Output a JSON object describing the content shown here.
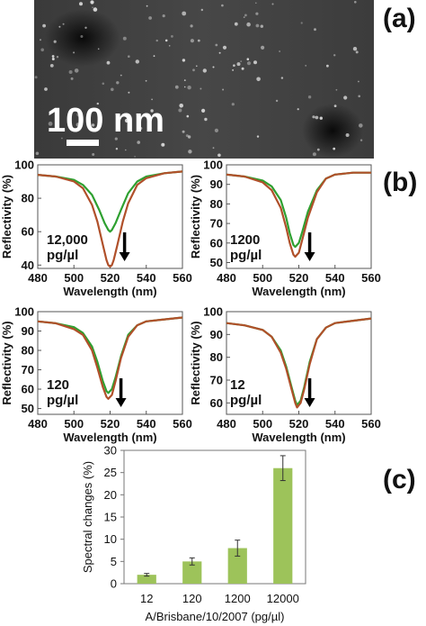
{
  "panel_labels": {
    "a": "(a)",
    "b": "(b)",
    "c": "(c)"
  },
  "micrograph": {
    "scale_bar_text": "100 nm"
  },
  "chart_data": [
    {
      "type": "line",
      "panel": "b-1",
      "xlabel": "Wavelength (nm)",
      "ylabel": "Reflectivity (%)",
      "annotation": "12,000\npg/µl",
      "xlim": [
        480,
        560
      ],
      "ylim": [
        38,
        100
      ],
      "xticks": [
        480,
        500,
        520,
        540,
        560
      ],
      "yticks": [
        40,
        60,
        80,
        100
      ],
      "series": [
        {
          "color": "#2ea030",
          "x": [
            480,
            490,
            500,
            505,
            510,
            514,
            517,
            519,
            520,
            521,
            523,
            526,
            530,
            535,
            540,
            550,
            560
          ],
          "y": [
            94,
            93,
            91,
            88,
            82,
            73,
            65,
            61,
            60,
            61,
            65,
            73,
            83,
            90,
            93,
            95,
            96
          ]
        },
        {
          "color": "#b0502a",
          "x": [
            480,
            490,
            500,
            505,
            510,
            513,
            516,
            518,
            519,
            520,
            521,
            522,
            524,
            527,
            530,
            535,
            540,
            550,
            560
          ],
          "y": [
            94,
            93,
            90,
            86,
            76,
            66,
            52,
            43,
            40,
            39,
            40,
            43,
            52,
            66,
            77,
            88,
            92,
            95,
            96
          ]
        }
      ],
      "arrow_x": 528
    },
    {
      "type": "line",
      "panel": "b-2",
      "xlabel": "Wavelength (nm)",
      "ylabel": "Reflectivity (%)",
      "annotation": "1200\npg/µl",
      "xlim": [
        480,
        560
      ],
      "ylim": [
        47,
        100
      ],
      "xticks": [
        480,
        500,
        520,
        540,
        560
      ],
      "yticks": [
        50,
        60,
        70,
        80,
        90,
        100
      ],
      "series": [
        {
          "color": "#2ea030",
          "x": [
            480,
            490,
            500,
            505,
            510,
            513,
            515,
            517,
            518,
            520,
            522,
            525,
            530,
            535,
            540,
            550,
            560
          ],
          "y": [
            95,
            94,
            92,
            89,
            82,
            73,
            65,
            59,
            58,
            60,
            66,
            76,
            87,
            93,
            95,
            96,
            96
          ]
        },
        {
          "color": "#b0502a",
          "x": [
            480,
            490,
            500,
            505,
            510,
            513,
            515,
            517,
            518,
            520,
            522,
            525,
            530,
            535,
            540,
            550,
            560
          ],
          "y": [
            95,
            94,
            91,
            87,
            78,
            68,
            60,
            54,
            53,
            55,
            62,
            73,
            86,
            93,
            95,
            96,
            96
          ]
        }
      ],
      "arrow_x": 526
    },
    {
      "type": "line",
      "panel": "b-3",
      "xlabel": "Wavelength (nm)",
      "ylabel": "Reflectivity (%)",
      "annotation": "120\npg/µl",
      "xlim": [
        480,
        560
      ],
      "ylim": [
        47,
        100
      ],
      "xticks": [
        480,
        500,
        520,
        540,
        560
      ],
      "yticks": [
        50,
        60,
        70,
        80,
        90,
        100
      ],
      "series": [
        {
          "color": "#2ea030",
          "x": [
            480,
            490,
            500,
            505,
            510,
            513,
            516,
            518,
            519,
            521,
            523,
            526,
            530,
            535,
            540,
            550,
            560
          ],
          "y": [
            95,
            94,
            92,
            89,
            82,
            74,
            64,
            59,
            58,
            60,
            66,
            77,
            88,
            93,
            95,
            96,
            97
          ]
        },
        {
          "color": "#b0502a",
          "x": [
            480,
            490,
            500,
            505,
            510,
            513,
            516,
            518,
            519,
            521,
            523,
            526,
            530,
            535,
            540,
            550,
            560
          ],
          "y": [
            95,
            94,
            91,
            88,
            80,
            71,
            61,
            56,
            55,
            57,
            64,
            76,
            87,
            93,
            95,
            96,
            97
          ]
        }
      ],
      "arrow_x": 526
    },
    {
      "type": "line",
      "panel": "b-4",
      "xlabel": "Wavelength (nm)",
      "ylabel": "Reflectivity (%)",
      "annotation": "12\npg/µl",
      "xlim": [
        480,
        560
      ],
      "ylim": [
        55,
        100
      ],
      "xticks": [
        480,
        500,
        520,
        540,
        560
      ],
      "yticks": [
        60,
        70,
        80,
        90,
        100
      ],
      "series": [
        {
          "color": "#2ea030",
          "x": [
            480,
            490,
            500,
            505,
            510,
            513,
            516,
            518,
            519,
            521,
            523,
            526,
            530,
            535,
            540,
            550,
            560
          ],
          "y": [
            95,
            94,
            92,
            89,
            83,
            76,
            67,
            61,
            59,
            61,
            67,
            78,
            88,
            93,
            95,
            96,
            97
          ]
        },
        {
          "color": "#b0502a",
          "x": [
            480,
            490,
            500,
            505,
            510,
            513,
            516,
            518,
            519,
            521,
            523,
            526,
            530,
            535,
            540,
            550,
            560
          ],
          "y": [
            95,
            94,
            92,
            89,
            82,
            75,
            66,
            60,
            58,
            60,
            66,
            77,
            88,
            93,
            95,
            96,
            97
          ]
        }
      ],
      "arrow_x": 526
    },
    {
      "type": "bar",
      "panel": "c",
      "xlabel": "A/Brisbane/10/2007 (pg/µl)",
      "ylabel": "Spectral changes (%)",
      "categories": [
        "12",
        "120",
        "1200",
        "12000"
      ],
      "values": [
        2,
        5,
        8,
        26
      ],
      "errors": [
        0.3,
        0.8,
        1.8,
        2.8
      ],
      "ylim": [
        0,
        30
      ],
      "yticks": [
        0,
        5,
        10,
        15,
        20,
        25,
        30
      ],
      "bar_color": "#9dc35a"
    }
  ]
}
